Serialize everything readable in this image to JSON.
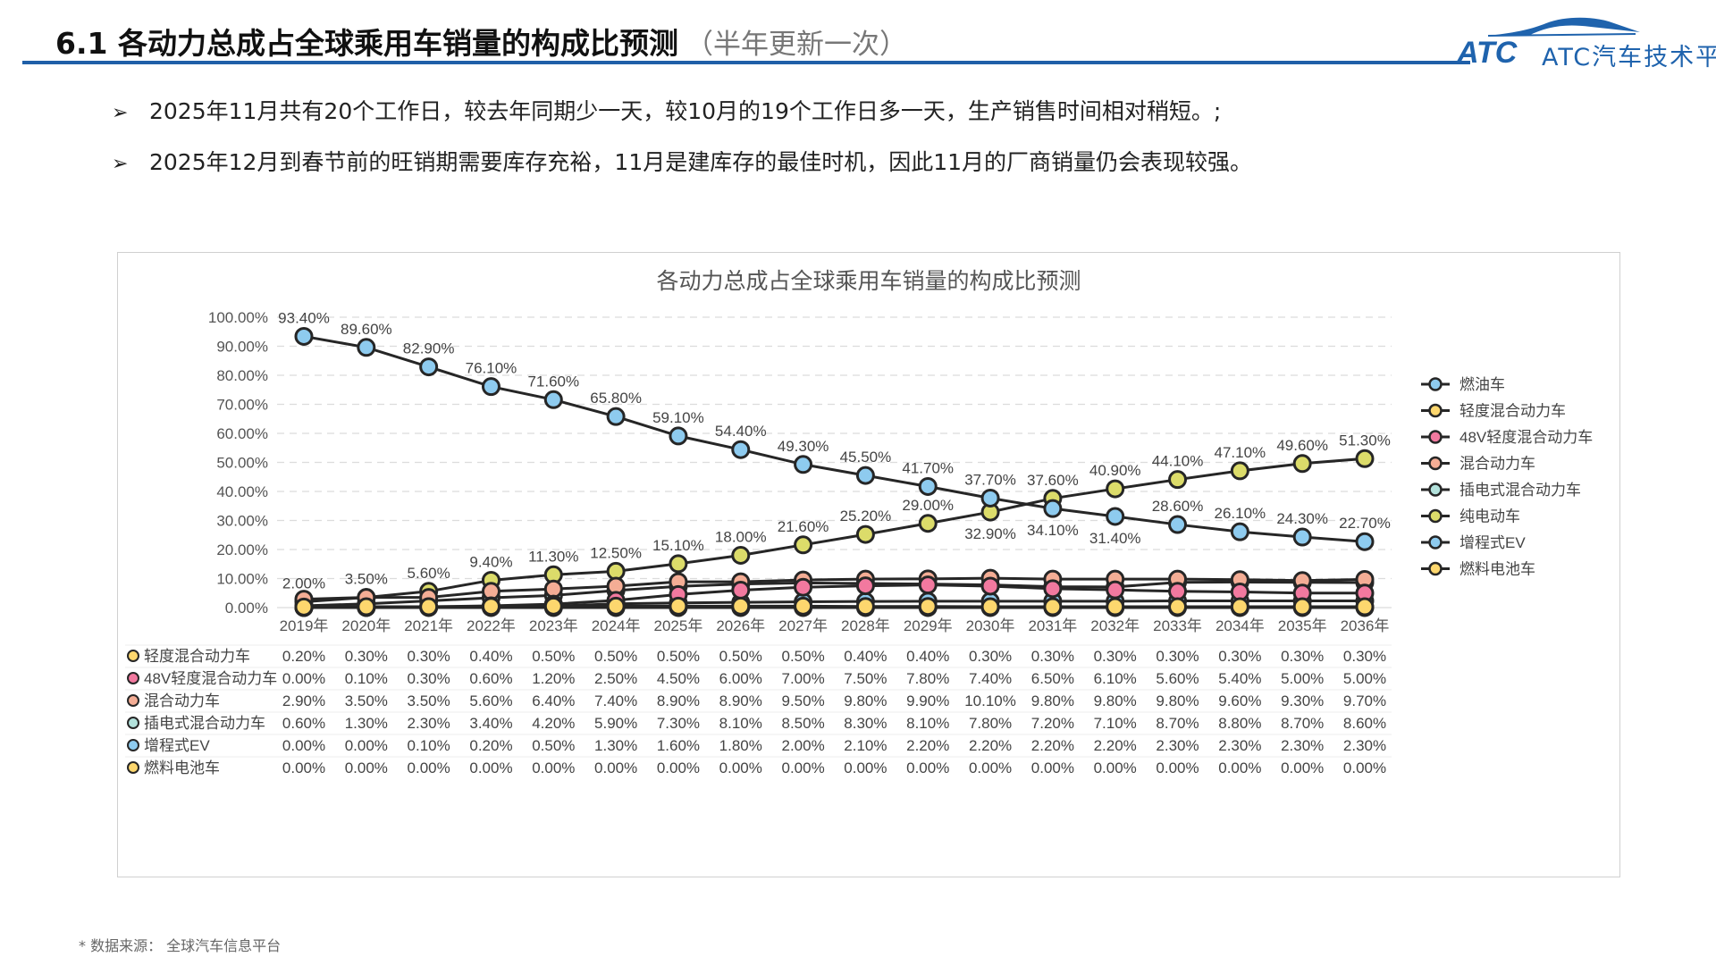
{
  "header": {
    "title": "6.1 各动力总成占全球乘用车销量的构成比预测",
    "subtitle": "（半年更新一次）",
    "logo_text": "ATC汽车技术平台",
    "brand_color": "#1f5fa8"
  },
  "bullets": [
    "2025年11月共有20个工作日，较去年同期少一天，较10月的19个工作日多一天，生产销售时间相对稍短。;",
    "2025年12月到春节前的旺销期需要库存充裕，11月是建库存的最佳时机，因此11月的厂商销量仍会表现较强。"
  ],
  "bullet_icon": "arrowhead-icon",
  "footer": "* 数据来源：  全球汽车信息平台",
  "chart_data": {
    "type": "line",
    "title": "各动力总成占全球乘用车销量的构成比预测",
    "xlabel": "",
    "ylabel": "",
    "ylim": [
      0,
      100
    ],
    "yticks": [
      "0.00%",
      "10.00%",
      "20.00%",
      "30.00%",
      "40.00%",
      "50.00%",
      "60.00%",
      "70.00%",
      "80.00%",
      "90.00%",
      "100.00%"
    ],
    "grid": true,
    "legend_position": "right",
    "categories": [
      "2019年",
      "2020年",
      "2021年",
      "2022年",
      "2023年",
      "2024年",
      "2025年",
      "2026年",
      "2027年",
      "2028年",
      "2029年",
      "2030年",
      "2031年",
      "2032年",
      "2033年",
      "2034年",
      "2035年",
      "2036年"
    ],
    "series": [
      {
        "name": "燃油车",
        "color": "#8ecbef",
        "values": [
          93.4,
          89.6,
          82.9,
          76.1,
          71.6,
          65.8,
          59.1,
          54.4,
          49.3,
          45.5,
          41.7,
          37.7,
          34.1,
          31.4,
          28.6,
          26.1,
          24.3,
          22.7
        ]
      },
      {
        "name": "轻度混合动力车",
        "color": "#fdd76e",
        "values": [
          0.2,
          0.3,
          0.3,
          0.4,
          0.5,
          0.5,
          0.5,
          0.5,
          0.5,
          0.4,
          0.4,
          0.3,
          0.3,
          0.3,
          0.3,
          0.3,
          0.3,
          0.3
        ]
      },
      {
        "name": "48V轻度混合动力车",
        "color": "#f2799f",
        "values": [
          0.0,
          0.1,
          0.3,
          0.6,
          1.2,
          2.5,
          4.5,
          6.0,
          7.0,
          7.5,
          7.8,
          7.4,
          6.5,
          6.1,
          5.6,
          5.4,
          5.0,
          5.0
        ]
      },
      {
        "name": "混合动力车",
        "color": "#f4ad95",
        "values": [
          2.9,
          3.5,
          3.5,
          5.6,
          6.4,
          7.4,
          8.9,
          8.9,
          9.5,
          9.8,
          9.9,
          10.1,
          9.8,
          9.8,
          9.8,
          9.6,
          9.3,
          9.7
        ]
      },
      {
        "name": "插电式混合动力车",
        "color": "#b3e2dc",
        "values": [
          0.6,
          1.3,
          2.3,
          3.4,
          4.2,
          5.9,
          7.3,
          8.1,
          8.5,
          8.3,
          8.1,
          7.8,
          7.2,
          7.1,
          8.7,
          8.8,
          8.7,
          8.6
        ]
      },
      {
        "name": "纯电动车",
        "color": "#dcdc6a",
        "values": [
          2.0,
          3.5,
          5.6,
          9.4,
          11.3,
          12.5,
          15.1,
          18.0,
          21.6,
          25.2,
          29.0,
          32.9,
          37.6,
          40.9,
          44.1,
          47.1,
          49.6,
          51.3
        ]
      },
      {
        "name": "增程式EV",
        "color": "#8ecbef",
        "values": [
          0.0,
          0.0,
          0.1,
          0.2,
          0.5,
          1.3,
          1.6,
          1.8,
          2.0,
          2.1,
          2.2,
          2.2,
          2.2,
          2.2,
          2.3,
          2.3,
          2.3,
          2.3
        ]
      },
      {
        "name": "燃料电池车",
        "color": "#fdd76e",
        "values": [
          0.0,
          0.0,
          0.0,
          0.0,
          0.0,
          0.0,
          0.0,
          0.0,
          0.0,
          0.0,
          0.0,
          0.0,
          0.0,
          0.0,
          0.0,
          0.0,
          0.0,
          0.0
        ]
      }
    ]
  }
}
